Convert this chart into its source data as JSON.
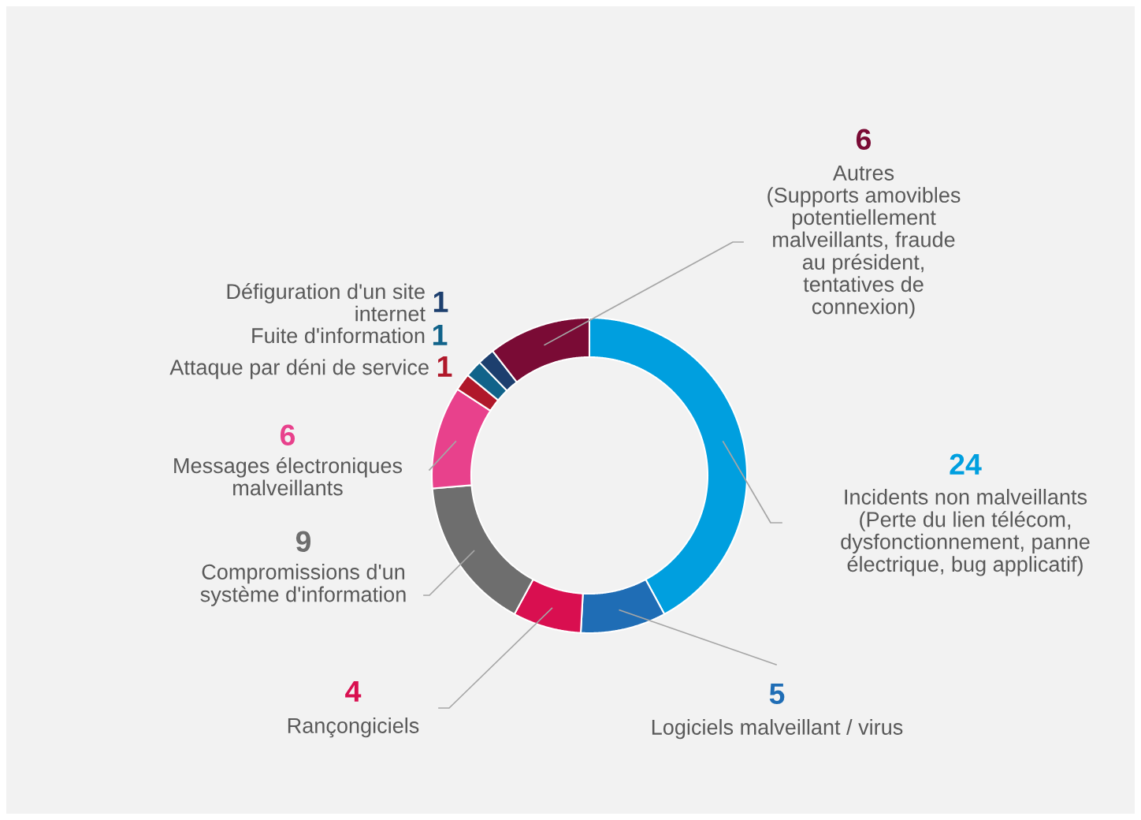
{
  "chart_data": {
    "type": "donut",
    "categories": [
      "Incidents non malveillants\n(Perte du lien télécom,\ndysfonctionnement, panne\nélectrique, bug applicatif)",
      "Logiciels malveillant / virus",
      "Rançongiciels",
      "Compromissions d'un\nsystème d'information",
      "Messages électroniques\nmalveillants",
      "Attaque par déni de service",
      "Fuite d'information",
      "Défiguration d'un site\ninternet",
      "Autres\n(Supports amovibles\npotentiellement\nmalveillants, fraude\nau président,\ntentatives de\nconnexion)"
    ],
    "values": [
      24,
      5,
      4,
      9,
      6,
      1,
      1,
      1,
      6
    ],
    "colors": [
      "#009fdf",
      "#1f6db5",
      "#d90f50",
      "#6e6e6e",
      "#e8418c",
      "#b0182a",
      "#11638a",
      "#1d3f6e",
      "#7a0b35"
    ],
    "data_labels": true,
    "legend": false
  }
}
